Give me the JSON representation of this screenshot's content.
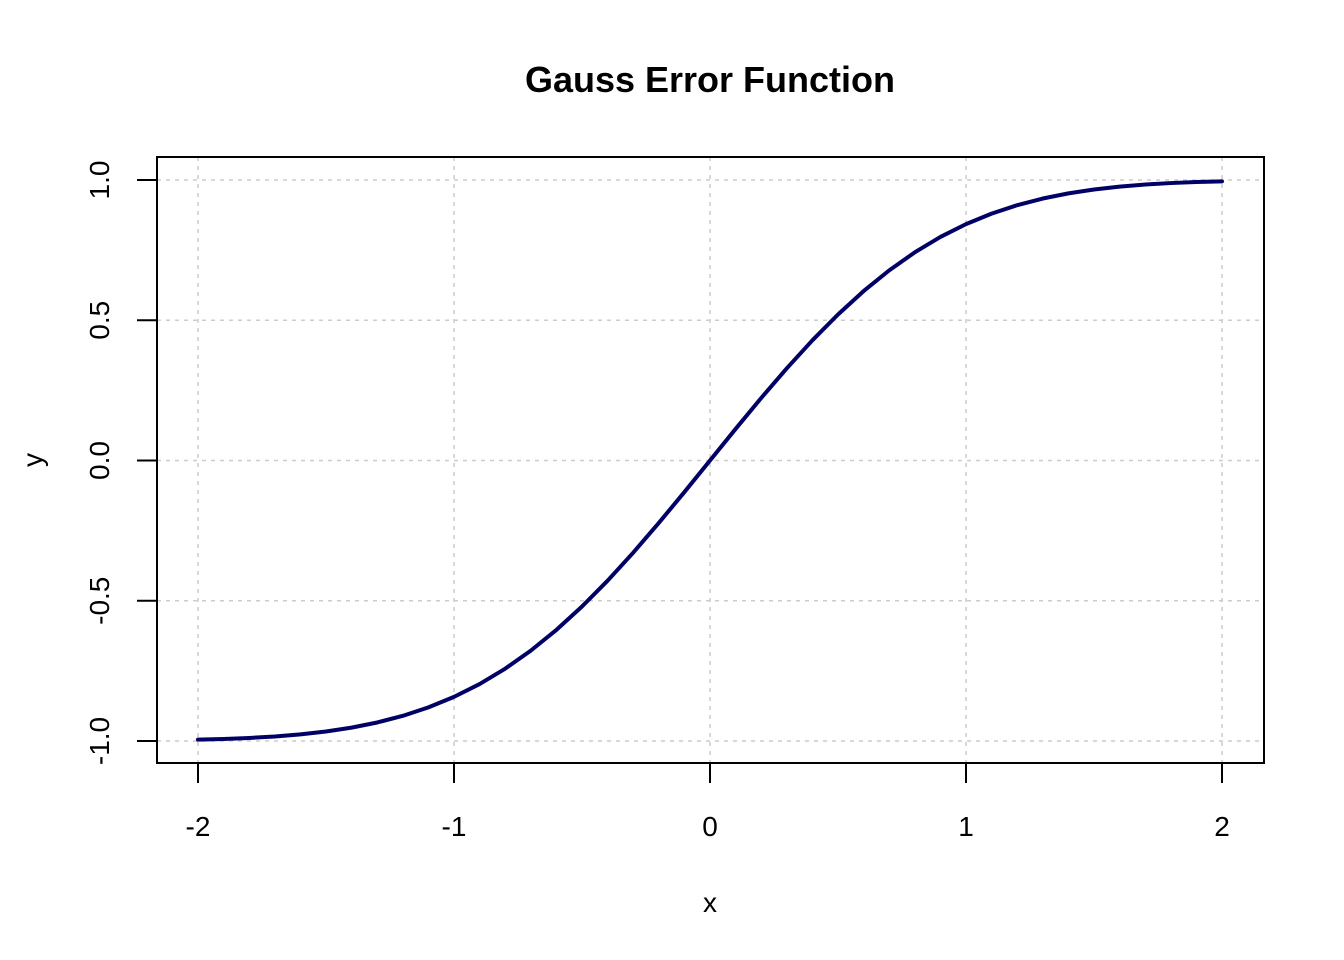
{
  "chart_data": {
    "type": "line",
    "title": "Gauss Error Function",
    "xlabel": "x",
    "ylabel": "y",
    "xlim": [
      -2,
      2
    ],
    "ylim": [
      -1,
      1
    ],
    "x_ticks": [
      -2,
      -1,
      0,
      1,
      2
    ],
    "y_ticks": [
      -1.0,
      -0.5,
      0.0,
      0.5,
      1.0
    ],
    "x_tick_labels": [
      "-2",
      "-1",
      "0",
      "1",
      "2"
    ],
    "y_tick_labels": [
      "-1.0",
      "-0.5",
      "0.0",
      "0.5",
      "1.0"
    ],
    "grid": true,
    "series": [
      {
        "color": "#000066",
        "x": [
          -2.0,
          -1.9,
          -1.8,
          -1.7,
          -1.6,
          -1.5,
          -1.4,
          -1.3,
          -1.2,
          -1.1,
          -1.0,
          -0.9,
          -0.8,
          -0.7,
          -0.6,
          -0.5,
          -0.4,
          -0.3,
          -0.2,
          -0.1,
          0.0,
          0.1,
          0.2,
          0.3,
          0.4,
          0.5,
          0.6,
          0.7,
          0.8,
          0.9,
          1.0,
          1.1,
          1.2,
          1.3,
          1.4,
          1.5,
          1.6,
          1.7,
          1.8,
          1.9,
          2.0
        ],
        "y": [
          -0.9953,
          -0.9928,
          -0.9891,
          -0.9838,
          -0.9763,
          -0.9661,
          -0.9523,
          -0.934,
          -0.9103,
          -0.8802,
          -0.8427,
          -0.7969,
          -0.7421,
          -0.6778,
          -0.6039,
          -0.5205,
          -0.4284,
          -0.3286,
          -0.2227,
          -0.1125,
          0.0,
          0.1125,
          0.2227,
          0.3286,
          0.4284,
          0.5205,
          0.6039,
          0.6778,
          0.7421,
          0.7969,
          0.8427,
          0.8802,
          0.9103,
          0.934,
          0.9523,
          0.9661,
          0.9763,
          0.9838,
          0.9891,
          0.9928,
          0.9953
        ]
      }
    ]
  }
}
